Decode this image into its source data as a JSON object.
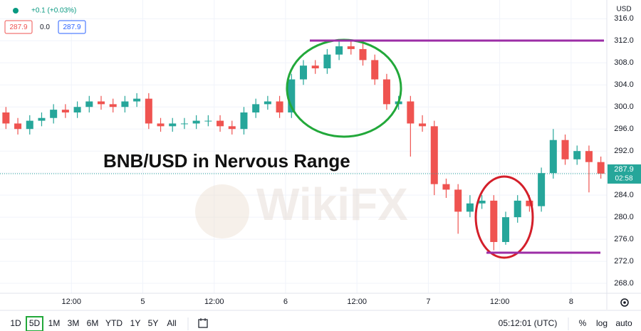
{
  "header": {
    "change": "+0.1 (+0.03%)",
    "bid": "287.9",
    "spread": "0.0",
    "ask": "287.9",
    "currency": "USD"
  },
  "chart_data": {
    "type": "candlestick",
    "title": "BNB/USD in Nervous Range",
    "x": [
      -23,
      -21,
      -19,
      -17,
      -15,
      -13,
      -11,
      -9,
      -7,
      -5,
      -3,
      -1,
      1,
      3,
      5,
      7,
      9,
      11,
      13,
      15,
      17,
      19,
      21,
      23,
      25,
      27,
      29,
      31,
      33,
      35,
      37,
      39,
      41,
      43,
      45,
      47,
      49,
      51,
      53,
      55,
      57,
      59,
      61,
      63,
      65,
      67,
      69,
      71,
      73,
      75,
      77
    ],
    "open": [
      299,
      297,
      296,
      297.5,
      298,
      299.5,
      299,
      300,
      301,
      300.5,
      300,
      301,
      301.5,
      297,
      296.5,
      297,
      297,
      297.5,
      297.5,
      296.5,
      296,
      299,
      300.5,
      301,
      299,
      305,
      307.5,
      307,
      309.5,
      311,
      310.5,
      308.5,
      305,
      300.5,
      301,
      297,
      296.5,
      286,
      285,
      281,
      282.5,
      283,
      275.5,
      280,
      283,
      282,
      288,
      294,
      290.5,
      292,
      290
    ],
    "high": [
      300,
      298,
      298.5,
      299,
      300.5,
      300.5,
      301,
      302,
      302,
      301.5,
      302,
      302.5,
      302.5,
      298,
      298,
      298,
      298.5,
      298.5,
      298.5,
      297.5,
      300,
      301.5,
      302,
      302,
      306,
      308.5,
      308.5,
      310.5,
      312,
      312,
      311.5,
      309.5,
      306,
      302,
      302,
      298.5,
      297.5,
      287,
      286,
      284,
      284,
      284,
      281,
      284,
      284,
      289,
      296,
      295,
      293,
      293,
      291
    ],
    "low": [
      296,
      295,
      295,
      296.5,
      297,
      298,
      298,
      299,
      299.5,
      299,
      299,
      300,
      296,
      295.5,
      295.5,
      296,
      296,
      296.5,
      295.5,
      295,
      295,
      298,
      299.5,
      298,
      298,
      304,
      306,
      306,
      308.5,
      309.5,
      307.5,
      304,
      299.5,
      299.5,
      291,
      295.5,
      284,
      283.5,
      277,
      280,
      281.5,
      274,
      275,
      279,
      281,
      281,
      287,
      289.5,
      289.5,
      284.5,
      287
    ],
    "close": [
      297,
      296,
      297.5,
      298,
      299.5,
      299,
      300,
      301,
      300.5,
      300,
      301,
      301.5,
      297,
      296.5,
      297,
      297,
      297.5,
      297.5,
      296.5,
      296,
      299,
      300.5,
      301,
      299,
      305,
      307.5,
      307,
      309.5,
      311,
      310.5,
      308.5,
      305,
      300.5,
      301,
      297,
      296.5,
      286,
      285,
      281,
      282.5,
      283,
      275.5,
      280,
      283,
      282,
      288,
      294,
      290.5,
      292,
      290,
      287.9
    ],
    "up_color": "#26a69a",
    "down_color": "#ef5350",
    "xlim": [
      -24,
      78
    ],
    "ylim": [
      266.2,
      319.4
    ],
    "xticks": [
      {
        "value": -12,
        "label": "12:00"
      },
      {
        "value": 0,
        "label": "5"
      },
      {
        "value": 12,
        "label": "12:00"
      },
      {
        "value": 24,
        "label": "6"
      },
      {
        "value": 36,
        "label": "12:00"
      },
      {
        "value": 48,
        "label": "7"
      },
      {
        "value": 60,
        "label": "12:00"
      },
      {
        "value": 72,
        "label": "8"
      }
    ],
    "yticks": [
      {
        "value": 316,
        "label": "316.0"
      },
      {
        "value": 312,
        "label": "312.0"
      },
      {
        "value": 308,
        "label": "308.0"
      },
      {
        "value": 304,
        "label": "304.0"
      },
      {
        "value": 300,
        "label": "300.0"
      },
      {
        "value": 296,
        "label": "296.0"
      },
      {
        "value": 292,
        "label": "292.0"
      },
      {
        "value": 288,
        "label": "288.0"
      },
      {
        "value": 284,
        "label": "284.0"
      },
      {
        "value": 280,
        "label": "280.0"
      },
      {
        "value": 276,
        "label": "276.0"
      },
      {
        "value": 272,
        "label": "272.0"
      },
      {
        "value": 268,
        "label": "268.0"
      }
    ],
    "grid": true,
    "last_price_label": "287.9",
    "countdown": "02:58"
  },
  "watermark": "WikiFX",
  "toolbar": {
    "ranges": [
      "1D",
      "5D",
      "1M",
      "3M",
      "6M",
      "YTD",
      "1Y",
      "5Y",
      "All"
    ],
    "clock": "05:12:01 (UTC)",
    "options": [
      "%",
      "log",
      "auto"
    ]
  }
}
